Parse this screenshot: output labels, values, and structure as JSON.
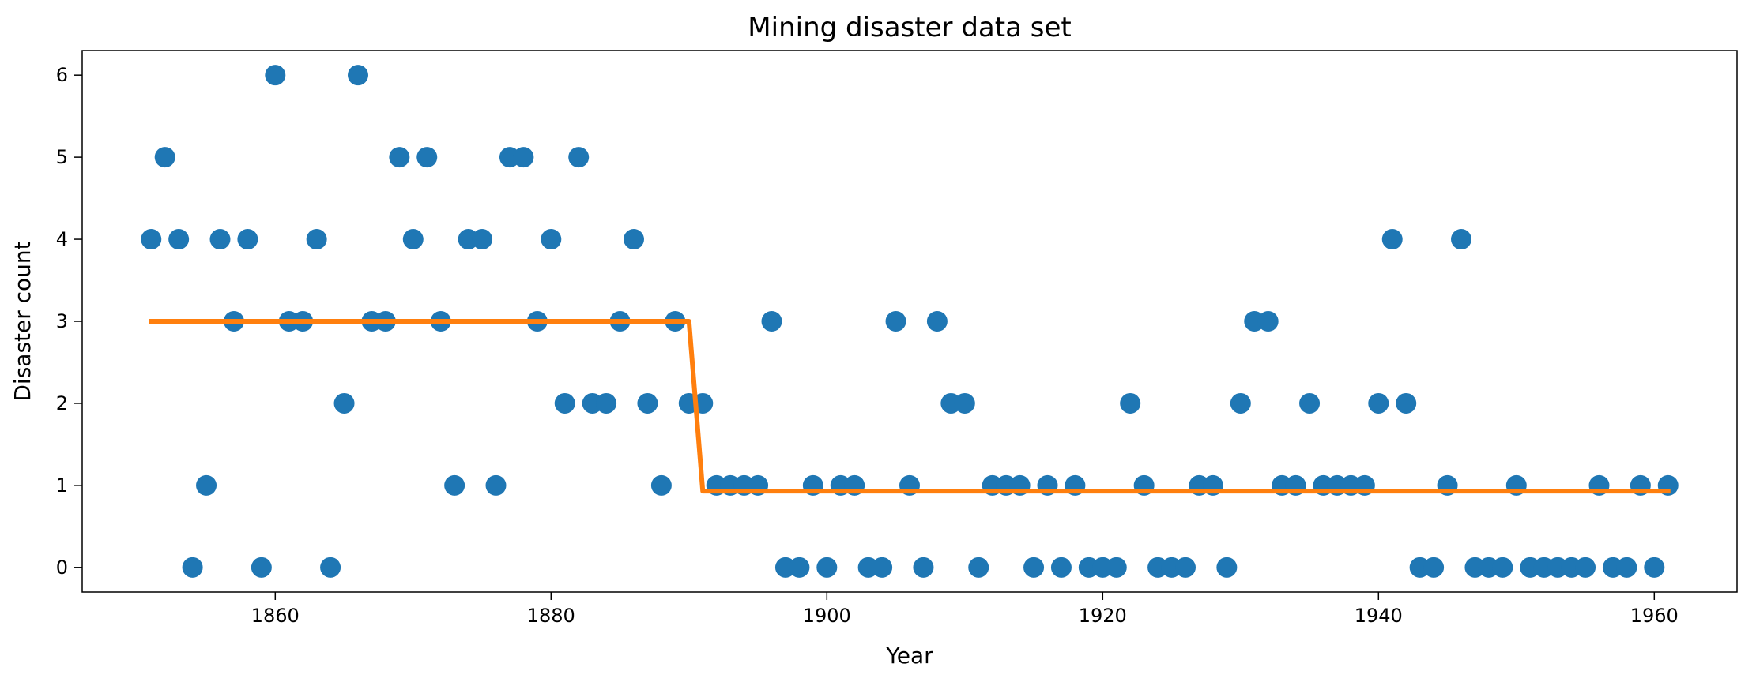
{
  "chart_data": {
    "type": "scatter",
    "title": "Mining disaster data set",
    "xlabel": "Year",
    "ylabel": "Disaster count",
    "xlim": [
      1846,
      1966
    ],
    "ylim": [
      -0.3,
      6.3
    ],
    "xticks": [
      1860,
      1880,
      1900,
      1920,
      1940,
      1960
    ],
    "yticks": [
      0,
      1,
      2,
      3,
      4,
      5,
      6
    ],
    "grid": false,
    "legend": "none",
    "series": [
      {
        "type": "scatter",
        "color": "#1f77b4",
        "x": [
          1851,
          1852,
          1853,
          1854,
          1855,
          1856,
          1857,
          1858,
          1859,
          1860,
          1861,
          1862,
          1863,
          1864,
          1865,
          1866,
          1867,
          1868,
          1869,
          1870,
          1871,
          1872,
          1873,
          1874,
          1875,
          1876,
          1877,
          1878,
          1879,
          1880,
          1881,
          1882,
          1883,
          1884,
          1885,
          1886,
          1887,
          1888,
          1889,
          1890,
          1891,
          1892,
          1893,
          1894,
          1895,
          1896,
          1897,
          1898,
          1899,
          1900,
          1901,
          1902,
          1903,
          1904,
          1905,
          1906,
          1907,
          1908,
          1909,
          1910,
          1911,
          1912,
          1913,
          1914,
          1915,
          1916,
          1917,
          1918,
          1919,
          1920,
          1921,
          1922,
          1923,
          1924,
          1925,
          1926,
          1927,
          1928,
          1929,
          1930,
          1931,
          1932,
          1933,
          1934,
          1935,
          1936,
          1937,
          1938,
          1939,
          1940,
          1941,
          1942,
          1943,
          1944,
          1945,
          1946,
          1947,
          1948,
          1949,
          1950,
          1951,
          1952,
          1953,
          1954,
          1955,
          1956,
          1957,
          1958,
          1959,
          1960,
          1961
        ],
        "y": [
          4,
          5,
          4,
          0,
          1,
          4,
          3,
          4,
          0,
          6,
          3,
          3,
          4,
          0,
          2,
          6,
          3,
          3,
          5,
          4,
          5,
          3,
          1,
          4,
          4,
          1,
          5,
          5,
          3,
          4,
          2,
          5,
          2,
          2,
          3,
          4,
          2,
          1,
          3,
          2,
          2,
          1,
          1,
          1,
          1,
          3,
          0,
          0,
          1,
          0,
          1,
          1,
          0,
          0,
          3,
          1,
          0,
          3,
          2,
          2,
          0,
          1,
          1,
          1,
          0,
          1,
          0,
          1,
          0,
          0,
          0,
          2,
          1,
          0,
          0,
          0,
          1,
          1,
          0,
          2,
          3,
          3,
          1,
          1,
          2,
          1,
          1,
          1,
          1,
          2,
          4,
          2,
          0,
          0,
          1,
          4,
          0,
          0,
          0,
          1,
          0,
          0,
          0,
          0,
          0,
          1,
          0,
          0,
          1,
          0,
          1
        ]
      },
      {
        "type": "line",
        "color": "#ff7f0e",
        "x": [
          1851,
          1890,
          1891,
          1961
        ],
        "y": [
          3.0,
          3.0,
          0.93,
          0.93
        ]
      }
    ]
  }
}
